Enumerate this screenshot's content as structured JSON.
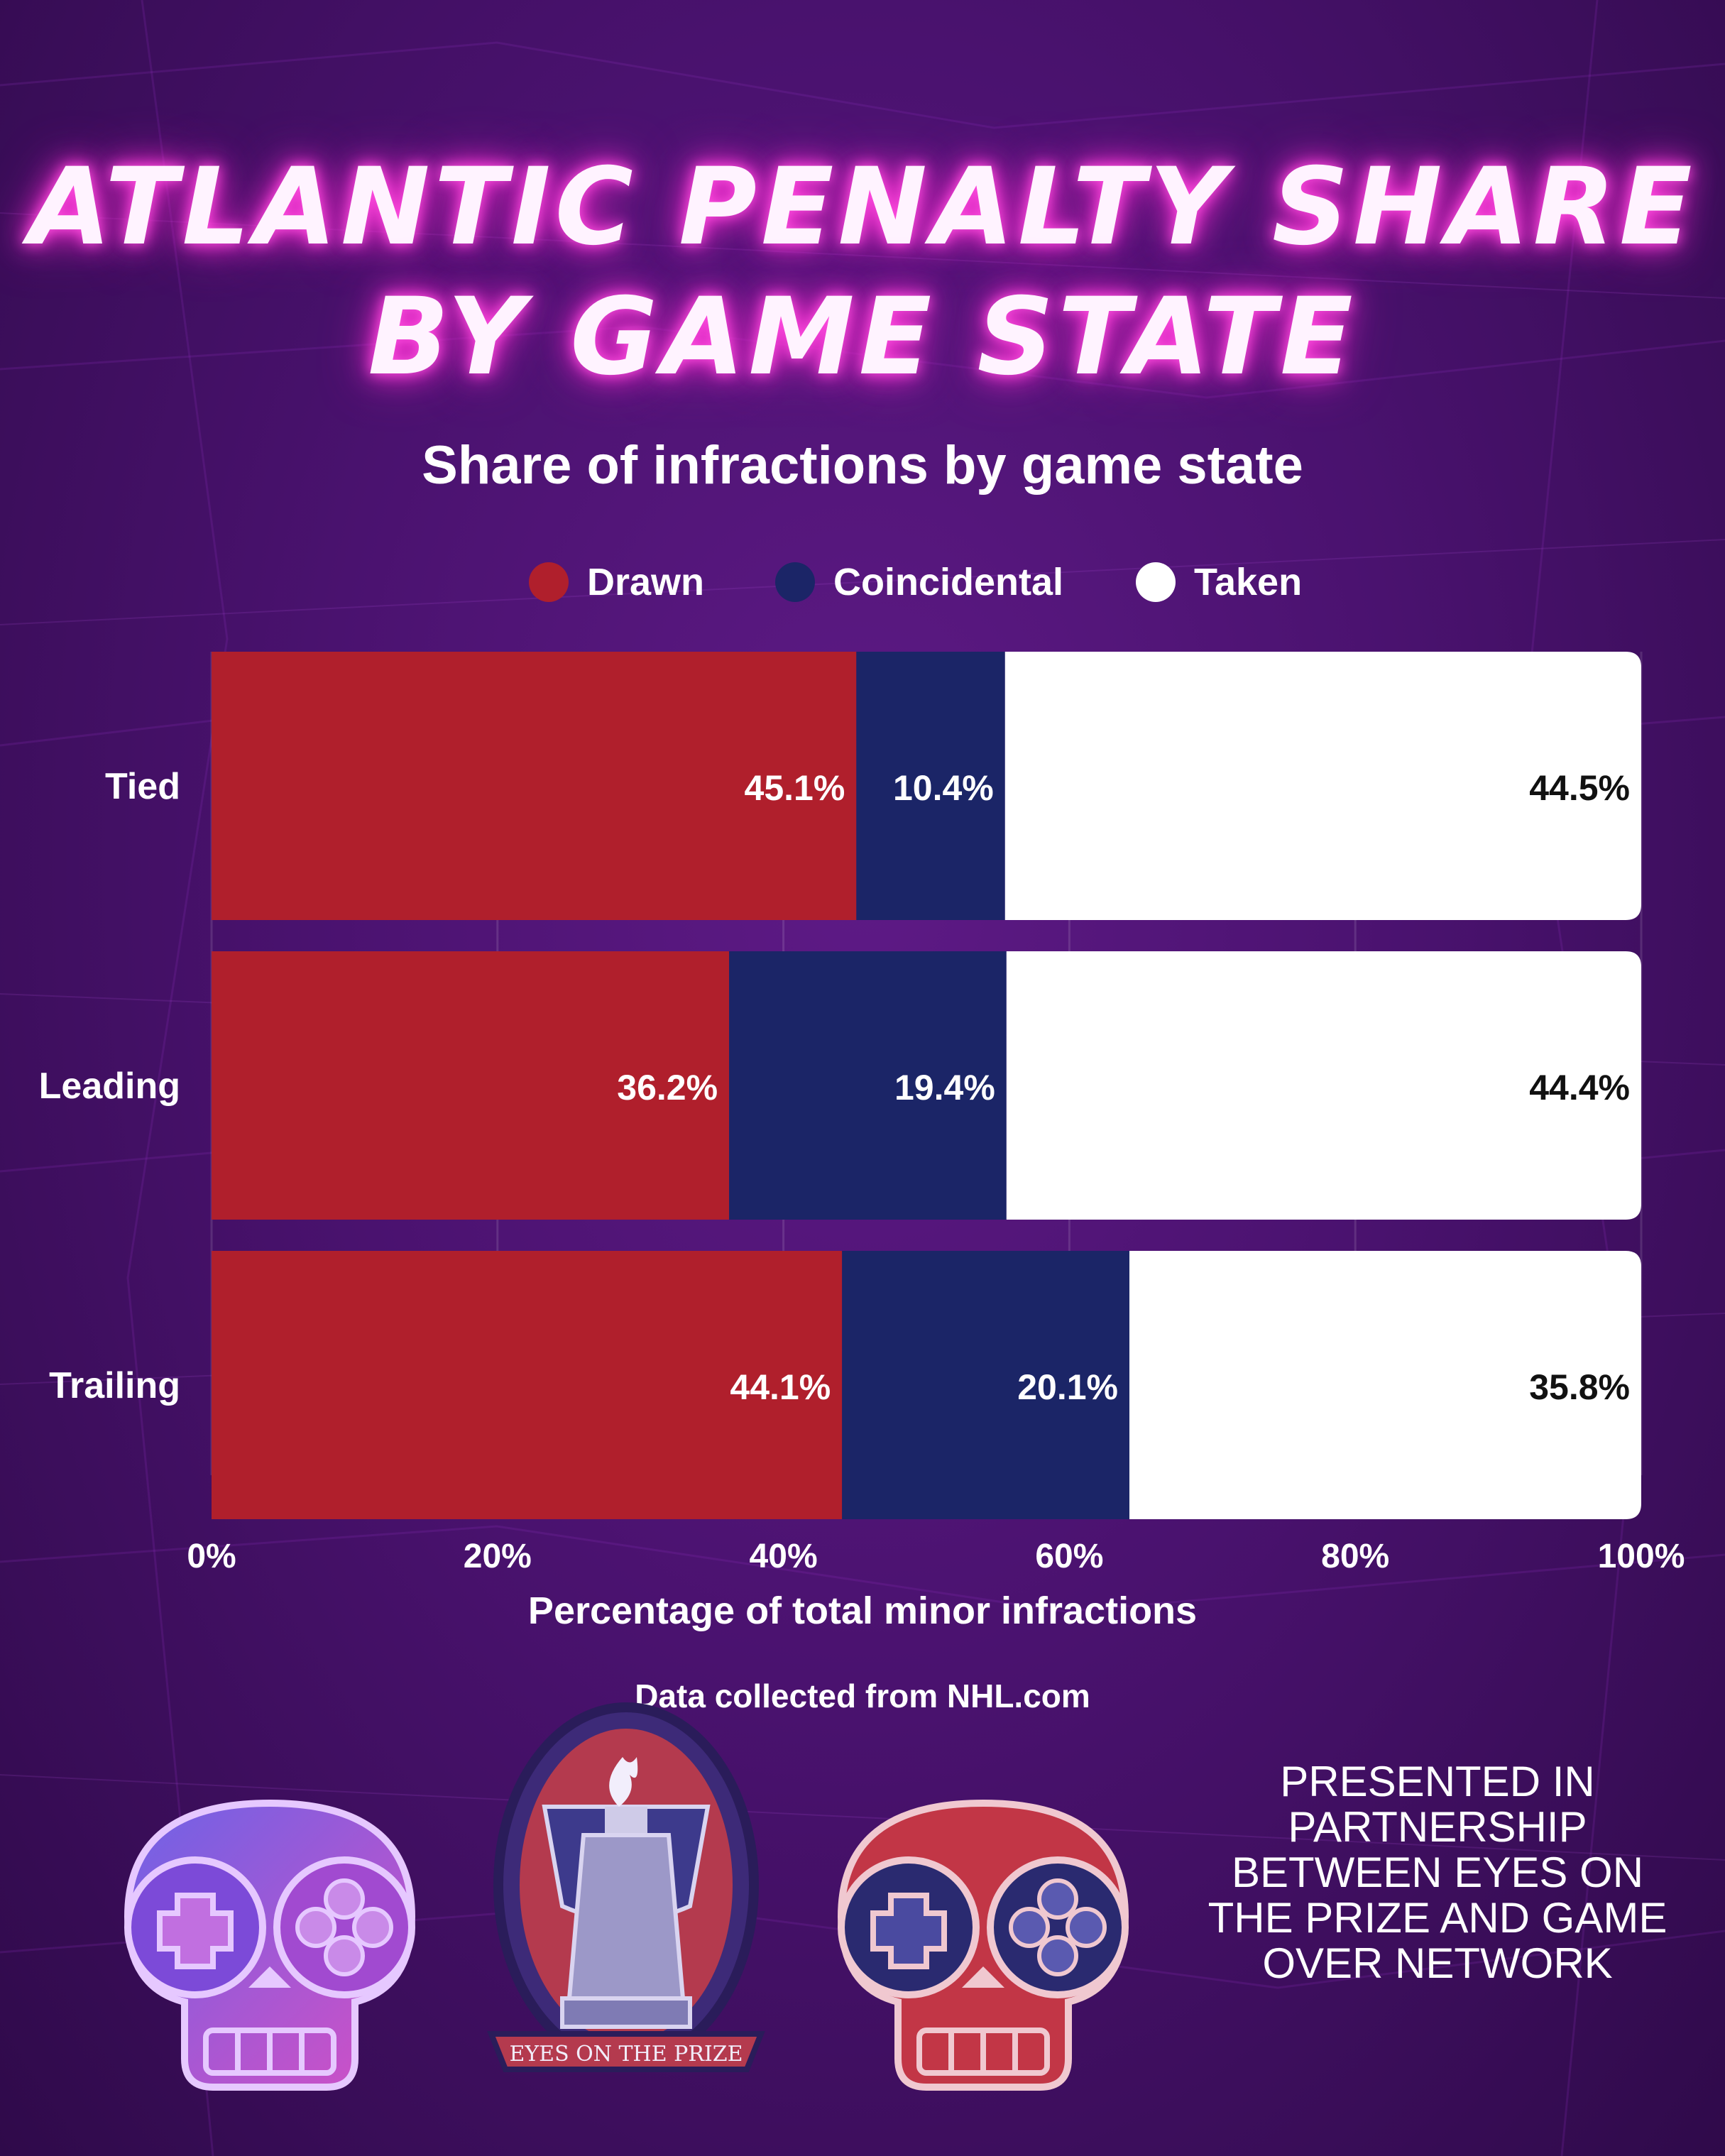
{
  "title": {
    "line1": "ATLANTIC PENALTY SHARE",
    "line2": "BY GAME STATE"
  },
  "colors": {
    "drawn": "#b01f2c",
    "coincidental": "#1b2567",
    "taken": "#ffffff",
    "background": "#4a126f"
  },
  "chart_data": {
    "type": "bar",
    "orientation": "horizontal",
    "stacked": true,
    "title": "Share of infractions by game state",
    "xlabel": "Percentage of total minor infractions",
    "ylabel": "",
    "xlim": [
      0,
      100
    ],
    "x_ticks": [
      "0%",
      "20%",
      "40%",
      "60%",
      "80%",
      "100%"
    ],
    "categories": [
      "Tied",
      "Leading",
      "Trailing"
    ],
    "series": [
      {
        "name": "Drawn",
        "values": [
          45.1,
          36.2,
          44.1
        ],
        "labels": [
          "45.1%",
          "36.2%",
          "44.1%"
        ]
      },
      {
        "name": "Coincidental",
        "values": [
          10.4,
          19.4,
          20.1
        ],
        "labels": [
          "10.4%",
          "19.4%",
          "20.1%"
        ]
      },
      {
        "name": "Taken",
        "values": [
          44.5,
          44.4,
          35.8
        ],
        "labels": [
          "44.5%",
          "44.4%",
          "35.8%"
        ]
      }
    ],
    "legend_position": "top",
    "grid": true
  },
  "source": "Data collected from NHL.com",
  "logos": {
    "left": "game-over-network-skull-icon",
    "center": "eyes-on-the-prize-badge-icon",
    "center_text": "EYES ON THE PRIZE",
    "right": "game-over-network-skull-icon"
  },
  "partner_text": "PRESENTED IN PARTNERSHIP BETWEEN EYES ON THE PRIZE AND GAME OVER NETWORK"
}
